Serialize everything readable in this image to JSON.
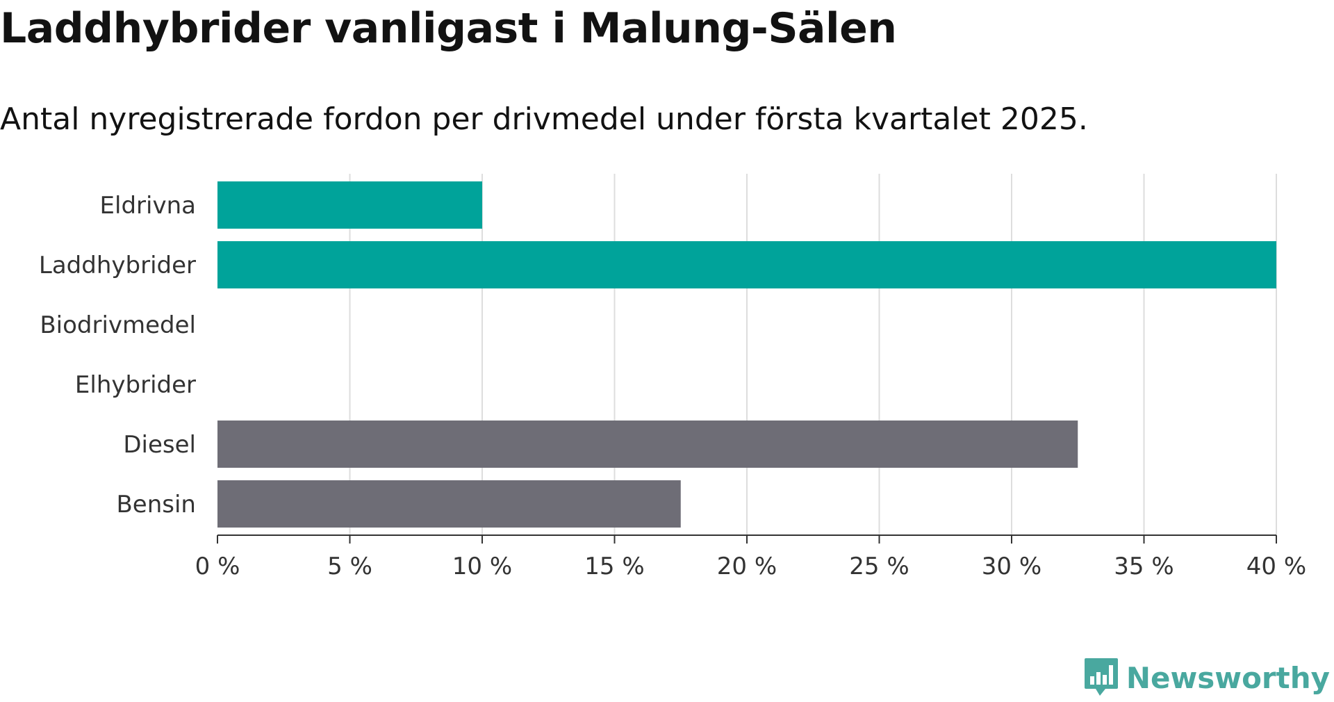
{
  "title": "Laddhybrider vanligast i Malung-Sälen",
  "subtitle": "Antal nyregistrerade fordon per drivmedel under första kvartalet 2025.",
  "brand": {
    "name": "Newsworthy",
    "logo_icon": "bar-chart-speech-bubble-icon",
    "color": "#49a89f"
  },
  "colors": {
    "highlight": "#00a39a",
    "other": "#6e6d76",
    "grid": "#dddddd",
    "axis": "#333333",
    "text": "#333333"
  },
  "chart_data": {
    "type": "bar",
    "orientation": "horizontal",
    "categories": [
      "Eldrivna",
      "Laddhybrider",
      "Biodrivmedel",
      "Elhybrider",
      "Diesel",
      "Bensin"
    ],
    "values": [
      10,
      40,
      0,
      0,
      32.5,
      17.5
    ],
    "bar_colors": [
      "#00a39a",
      "#00a39a",
      "#6e6d76",
      "#6e6d76",
      "#6e6d76",
      "#6e6d76"
    ],
    "unit": "%",
    "xlim": [
      0,
      40
    ],
    "ticks": [
      0,
      5,
      10,
      15,
      20,
      25,
      30,
      35,
      40
    ],
    "tick_labels": [
      "0 %",
      "5 %",
      "10 %",
      "15 %",
      "20 %",
      "25 %",
      "30 %",
      "35 %",
      "40 %"
    ],
    "grid": true,
    "legend": "none"
  }
}
